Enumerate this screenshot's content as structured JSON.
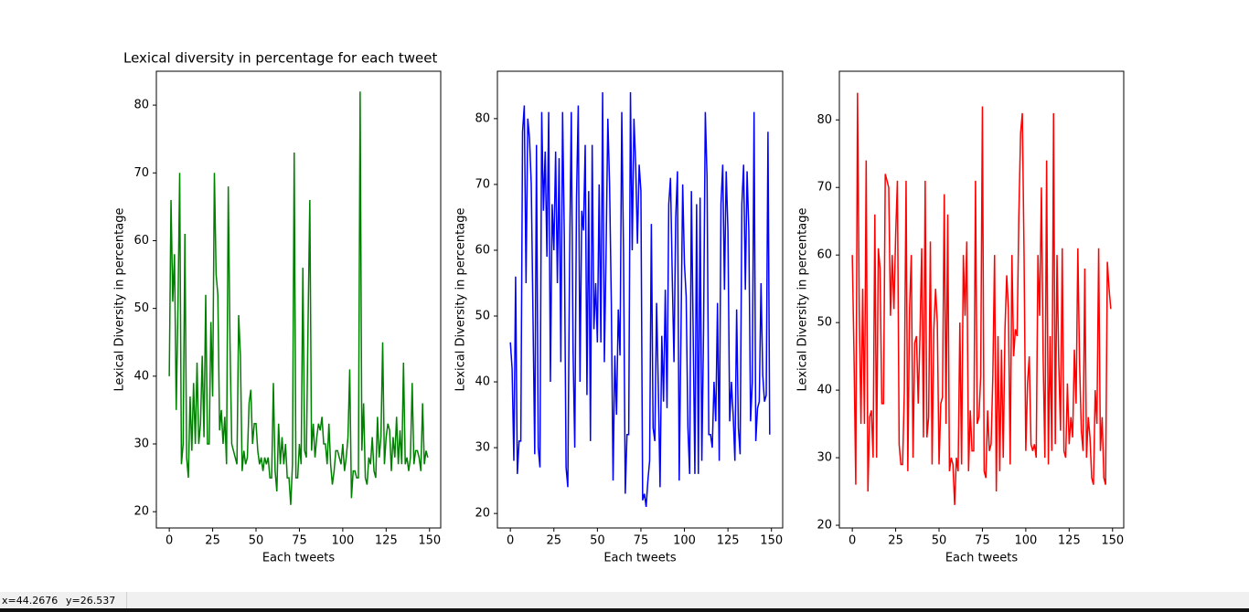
{
  "chart_data": [
    {
      "type": "line",
      "title": "Lexical diversity in percentage for each tweet",
      "xlabel": "Each tweets",
      "ylabel": "Lexical Diversity in percentage",
      "x": [
        0,
        1,
        2,
        3,
        4,
        5,
        6,
        7,
        8,
        9,
        10,
        11,
        12,
        13,
        14,
        15,
        16,
        17,
        18,
        19,
        20,
        21,
        22,
        23,
        24,
        25,
        26,
        27,
        28,
        29,
        30,
        31,
        32,
        33,
        34,
        35,
        36,
        37,
        38,
        39,
        40,
        41,
        42,
        43,
        44,
        45,
        46,
        47,
        48,
        49,
        50,
        51,
        52,
        53,
        54,
        55,
        56,
        57,
        58,
        59,
        60,
        61,
        62,
        63,
        64,
        65,
        66,
        67,
        68,
        69,
        70,
        71,
        72,
        73,
        74,
        75,
        76,
        77,
        78,
        79,
        80,
        81,
        82,
        83,
        84,
        85,
        86,
        87,
        88,
        89,
        90,
        91,
        92,
        93,
        94,
        95,
        96,
        97,
        98,
        99,
        100,
        101,
        102,
        103,
        104,
        105,
        106,
        107,
        108,
        109,
        110,
        111,
        112,
        113,
        114,
        115,
        116,
        117,
        118,
        119,
        120,
        121,
        122,
        123,
        124,
        125,
        126,
        127,
        128,
        129,
        130,
        131,
        132,
        133,
        134,
        135,
        136,
        137,
        138,
        139,
        140,
        141,
        142,
        143,
        144,
        145,
        146,
        147,
        148,
        149
      ],
      "series": [
        {
          "color": "#008000",
          "values": [
            40,
            66,
            51,
            58,
            35,
            50,
            70,
            27,
            30,
            61,
            28,
            25,
            37,
            29,
            39,
            30,
            42,
            30,
            33,
            43,
            31,
            52,
            30,
            30,
            48,
            37,
            70,
            55,
            52,
            32,
            35,
            30,
            34,
            27,
            68,
            45,
            30,
            29,
            28,
            27,
            49,
            43,
            26,
            29,
            27,
            28,
            36,
            38,
            30,
            33,
            33,
            29,
            27,
            28,
            26,
            28,
            27,
            28,
            25,
            25,
            39,
            26,
            23,
            33,
            27,
            31,
            27,
            30,
            25,
            25,
            21,
            27,
            73,
            25,
            25,
            30,
            27,
            56,
            29,
            28,
            48,
            66,
            29,
            33,
            28,
            31,
            33,
            32,
            34,
            30,
            30,
            27,
            33,
            27,
            24,
            26,
            29,
            29,
            28,
            27,
            30,
            26,
            28,
            31,
            41,
            22,
            26,
            26,
            25,
            25,
            82,
            29,
            36,
            25,
            24,
            28,
            27,
            31,
            26,
            25,
            34,
            28,
            31,
            45,
            27,
            31,
            33,
            32,
            26,
            31,
            28,
            34,
            27,
            32,
            27,
            42,
            27,
            28,
            26,
            28,
            39,
            27,
            29,
            29,
            28,
            26,
            36,
            27,
            29,
            28
          ]
        }
      ],
      "xlim": [
        -7.45,
        156.45
      ],
      "xticks": [
        0,
        25,
        50,
        75,
        100,
        125,
        150
      ],
      "ylim": [
        17.6,
        85
      ],
      "yticks": [
        20,
        30,
        40,
        50,
        60,
        70,
        80
      ]
    },
    {
      "type": "line",
      "xlabel": "Each tweets",
      "ylabel": "Lexical Diversity in percentage",
      "x": [
        0,
        1,
        2,
        3,
        4,
        5,
        6,
        7,
        8,
        9,
        10,
        11,
        12,
        13,
        14,
        15,
        16,
        17,
        18,
        19,
        20,
        21,
        22,
        23,
        24,
        25,
        26,
        27,
        28,
        29,
        30,
        31,
        32,
        33,
        34,
        35,
        36,
        37,
        38,
        39,
        40,
        41,
        42,
        43,
        44,
        45,
        46,
        47,
        48,
        49,
        50,
        51,
        52,
        53,
        54,
        55,
        56,
        57,
        58,
        59,
        60,
        61,
        62,
        63,
        64,
        65,
        66,
        67,
        68,
        69,
        70,
        71,
        72,
        73,
        74,
        75,
        76,
        77,
        78,
        79,
        80,
        81,
        82,
        83,
        84,
        85,
        86,
        87,
        88,
        89,
        90,
        91,
        92,
        93,
        94,
        95,
        96,
        97,
        98,
        99,
        100,
        101,
        102,
        103,
        104,
        105,
        106,
        107,
        108,
        109,
        110,
        111,
        112,
        113,
        114,
        115,
        116,
        117,
        118,
        119,
        120,
        121,
        122,
        123,
        124,
        125,
        126,
        127,
        128,
        129,
        130,
        131,
        132,
        133,
        134,
        135,
        136,
        137,
        138,
        139,
        140,
        141,
        142,
        143,
        144,
        145,
        146,
        147,
        148,
        149
      ],
      "series": [
        {
          "color": "#0000ff",
          "values": [
            46,
            42,
            28,
            56,
            26,
            31,
            31,
            78,
            82,
            55,
            80,
            77,
            70,
            50,
            29,
            76,
            30,
            27,
            81,
            66,
            75,
            59,
            81,
            40,
            67,
            60,
            75,
            55,
            74,
            43,
            81,
            62,
            27,
            24,
            58,
            81,
            45,
            30,
            68,
            82,
            40,
            66,
            63,
            76,
            38,
            69,
            31,
            76,
            48,
            55,
            46,
            70,
            46,
            84,
            43,
            60,
            80,
            70,
            52,
            25,
            44,
            35,
            51,
            44,
            81,
            60,
            23,
            32,
            32,
            84,
            60,
            80,
            73,
            61,
            73,
            69,
            22,
            23,
            21,
            25,
            28,
            64,
            33,
            31,
            52,
            39,
            24,
            47,
            37,
            54,
            36,
            67,
            71,
            56,
            43,
            65,
            72,
            25,
            47,
            70,
            58,
            53,
            33,
            26,
            69,
            48,
            26,
            67,
            26,
            68,
            28,
            48,
            81,
            71,
            32,
            32,
            30,
            40,
            34,
            52,
            28,
            67,
            73,
            54,
            72,
            63,
            34,
            40,
            35,
            28,
            51,
            33,
            29,
            67,
            73,
            54,
            72,
            63,
            34,
            40,
            81,
            31,
            36,
            37,
            55,
            41,
            37,
            38,
            78,
            32
          ]
        }
      ],
      "xlim": [
        -7.45,
        156.45
      ],
      "xticks": [
        0,
        25,
        50,
        75,
        100,
        125,
        150
      ],
      "ylim": [
        17.8,
        87.2
      ],
      "yticks": [
        20,
        30,
        40,
        50,
        60,
        70,
        80
      ]
    },
    {
      "type": "line",
      "xlabel": "Each tweets",
      "ylabel": "Lexical Diversity in percentage",
      "x": [
        0,
        1,
        2,
        3,
        4,
        5,
        6,
        7,
        8,
        9,
        10,
        11,
        12,
        13,
        14,
        15,
        16,
        17,
        18,
        19,
        20,
        21,
        22,
        23,
        24,
        25,
        26,
        27,
        28,
        29,
        30,
        31,
        32,
        33,
        34,
        35,
        36,
        37,
        38,
        39,
        40,
        41,
        42,
        43,
        44,
        45,
        46,
        47,
        48,
        49,
        50,
        51,
        52,
        53,
        54,
        55,
        56,
        57,
        58,
        59,
        60,
        61,
        62,
        63,
        64,
        65,
        66,
        67,
        68,
        69,
        70,
        71,
        72,
        73,
        74,
        75,
        76,
        77,
        78,
        79,
        80,
        81,
        82,
        83,
        84,
        85,
        86,
        87,
        88,
        89,
        90,
        91,
        92,
        93,
        94,
        95,
        96,
        97,
        98,
        99,
        100,
        101,
        102,
        103,
        104,
        105,
        106,
        107,
        108,
        109,
        110,
        111,
        112,
        113,
        114,
        115,
        116,
        117,
        118,
        119,
        120,
        121,
        122,
        123,
        124,
        125,
        126,
        127,
        128,
        129,
        130,
        131,
        132,
        133,
        134,
        135,
        136,
        137,
        138,
        139,
        140,
        141,
        142,
        143,
        144,
        145,
        146,
        147,
        148,
        149
      ],
      "series": [
        {
          "color": "#ff0000",
          "values": [
            60,
            45,
            26,
            84,
            52,
            35,
            55,
            35,
            74,
            25,
            36,
            37,
            30,
            66,
            30,
            61,
            58,
            38,
            38,
            72,
            71,
            70,
            51,
            60,
            52,
            63,
            71,
            32,
            29,
            29,
            40,
            71,
            28,
            52,
            60,
            30,
            47,
            48,
            38,
            48,
            61,
            33,
            71,
            33,
            36,
            62,
            29,
            49,
            55,
            50,
            29,
            38,
            39,
            69,
            35,
            66,
            28,
            30,
            29,
            23,
            30,
            28,
            50,
            29,
            60,
            51,
            62,
            28,
            37,
            31,
            31,
            71,
            35,
            36,
            42,
            82,
            28,
            27,
            37,
            31,
            32,
            42,
            60,
            25,
            48,
            28,
            46,
            30,
            49,
            57,
            52,
            29,
            60,
            45,
            49,
            48,
            66,
            78,
            81,
            60,
            31,
            41,
            45,
            32,
            31,
            32,
            30,
            60,
            51,
            70,
            45,
            30,
            74,
            29,
            48,
            31,
            81,
            32,
            60,
            44,
            34,
            61,
            31,
            30,
            41,
            32,
            36,
            33,
            46,
            38,
            61,
            44,
            34,
            31,
            58,
            30,
            36,
            33,
            27,
            26,
            40,
            35,
            61,
            31,
            36,
            27,
            26,
            59,
            55,
            52
          ]
        }
      ],
      "xlim": [
        -7.45,
        156.45
      ],
      "xticks": [
        0,
        25,
        50,
        75,
        100,
        125,
        150
      ],
      "ylim": [
        19.6,
        87.2
      ],
      "yticks": [
        20,
        30,
        40,
        50,
        60,
        70,
        80
      ]
    }
  ],
  "status_bar": {
    "x": "x=44.2676",
    "y": "y=26.537"
  }
}
